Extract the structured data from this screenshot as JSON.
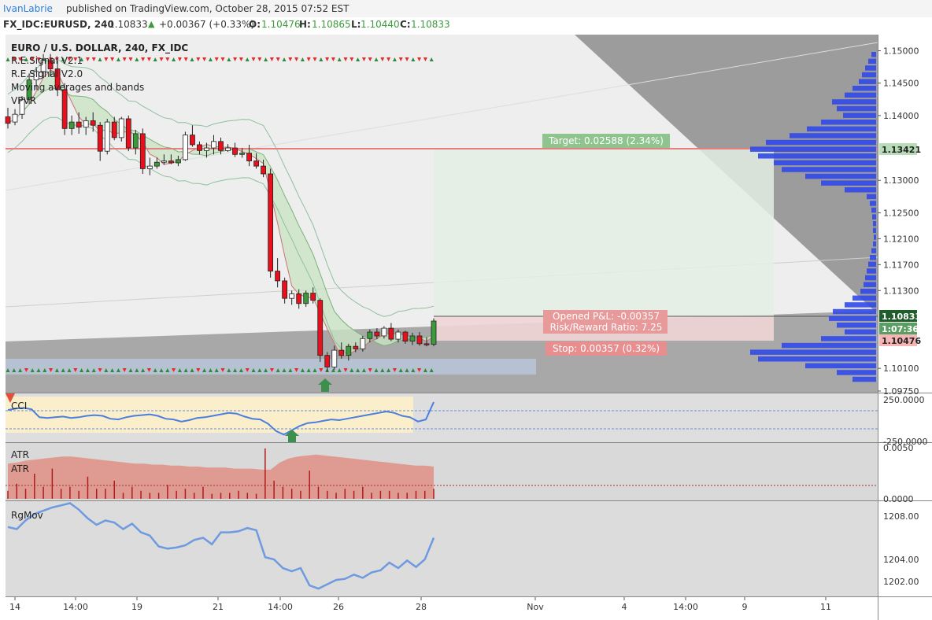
{
  "header": {
    "author": "IvanLabrie",
    "published_text": "published on TradingView.com, October 28, 2015 07:52 EST"
  },
  "ticker": {
    "symbol": "FX_IDC:EURUSD, 240",
    "last": "1.10833",
    "change": "+0.00367 (+0.33%)",
    "o_label": "O:",
    "o": "1.10476",
    "h_label": "H:",
    "h": "1.10865",
    "l_label": "L:",
    "l": "1.10440",
    "c_label": "C:",
    "c": "1.10833"
  },
  "colors": {
    "up_candle": "#3b9b3b",
    "down_candle": "#e8101c",
    "hollow_candle": "#ffffff",
    "buy_marker": "#2e8b3a",
    "sell_marker": "#e82a2a",
    "line_blue": "#4a7fe0",
    "target_zone": "#e3f0e3",
    "stop_zone": "#f3d8d8",
    "volume_profile": "#3049ea",
    "atr_fill": "#e0857a"
  },
  "legend": {
    "title": "EURO / U.S. DOLLAR, 240, FX_IDC",
    "items": [
      "R.E.Signal V2.1",
      "R.E.Signal V2.0",
      "Moving averages and bands",
      "VPVR"
    ]
  },
  "panes": {
    "cci_label": "CCI",
    "atr_label_1": "ATR",
    "atr_label_2": "ATR",
    "rgmov_label": "RgMov"
  },
  "position": {
    "target_label": "Target: 0.02588 (2.34%)",
    "pnl_label": "Opened P&L: -0.00357",
    "rr_label": "Risk/Reward Ratio: 7.25",
    "stop_label": "Stop: 0.00357 (0.32%)"
  },
  "price_axis": {
    "ticks": [
      "1.15000",
      "1.14500",
      "1.14000",
      "1.13000",
      "1.12500",
      "1.12100",
      "1.11700",
      "1.11300",
      "1.10100",
      "1.09750"
    ],
    "badges": [
      {
        "text": "1.13421",
        "bg": "#b7dcb7",
        "fg": "#222222"
      },
      {
        "text": "1.10833",
        "bg": "#1f5d2a",
        "fg": "#ffffff"
      },
      {
        "text": "1:07:36",
        "bg": "#5b9e63",
        "fg": "#ffffff"
      },
      {
        "text": "1.10476",
        "bg": "#f5b5b5",
        "fg": "#222222"
      }
    ]
  },
  "cci_axis": {
    "ticks": [
      "250.0000",
      "-250.0000"
    ]
  },
  "atr_axis": {
    "ticks": [
      "0.0050",
      "0.0000"
    ]
  },
  "rgmov_axis": {
    "ticks": [
      "1208.00",
      "1204.00",
      "1202.00"
    ]
  },
  "time_axis": {
    "ticks": [
      "14",
      "14:00",
      "19",
      "21",
      "14:00",
      "26",
      "28",
      "Nov",
      "4",
      "14:00",
      "9",
      "11"
    ]
  },
  "chart_data": {
    "type": "candlestick",
    "title": "EURO / U.S. DOLLAR, 240, FX_IDC",
    "xlabel": "",
    "ylabel": "",
    "ylim": [
      1.0975,
      1.152
    ],
    "levels": {
      "target": 1.13421,
      "entry": 1.10833,
      "stop": 1.10476
    },
    "ohlc": [
      [
        1.1398,
        1.1412,
        1.138,
        1.1388
      ],
      [
        1.139,
        1.141,
        1.1385,
        1.1402
      ],
      [
        1.1402,
        1.143,
        1.1395,
        1.1425
      ],
      [
        1.1425,
        1.1465,
        1.1418,
        1.1455
      ],
      [
        1.1455,
        1.1475,
        1.144,
        1.1468
      ],
      [
        1.1468,
        1.1495,
        1.1458,
        1.1485
      ],
      [
        1.1485,
        1.1495,
        1.146,
        1.1472
      ],
      [
        1.1472,
        1.1485,
        1.143,
        1.144
      ],
      [
        1.144,
        1.145,
        1.137,
        1.138
      ],
      [
        1.138,
        1.14,
        1.137,
        1.139
      ],
      [
        1.139,
        1.1405,
        1.1372,
        1.1382
      ],
      [
        1.1382,
        1.1398,
        1.137,
        1.1392
      ],
      [
        1.1392,
        1.1405,
        1.1375,
        1.1385
      ],
      [
        1.1385,
        1.139,
        1.133,
        1.1345
      ],
      [
        1.1345,
        1.1395,
        1.134,
        1.139
      ],
      [
        1.139,
        1.1398,
        1.1362,
        1.1366
      ],
      [
        1.1366,
        1.1398,
        1.136,
        1.1395
      ],
      [
        1.1395,
        1.14,
        1.1345,
        1.135
      ],
      [
        1.135,
        1.1378,
        1.134,
        1.1372
      ],
      [
        1.1372,
        1.138,
        1.131,
        1.1318
      ],
      [
        1.1318,
        1.1335,
        1.1308,
        1.1322
      ],
      [
        1.1322,
        1.1335,
        1.1318,
        1.1328
      ],
      [
        1.1328,
        1.134,
        1.1324,
        1.133
      ],
      [
        1.133,
        1.134,
        1.1325,
        1.1327
      ],
      [
        1.1327,
        1.1338,
        1.1322,
        1.1332
      ],
      [
        1.1332,
        1.1375,
        1.133,
        1.137
      ],
      [
        1.137,
        1.1385,
        1.1352,
        1.1355
      ],
      [
        1.1355,
        1.136,
        1.134,
        1.1346
      ],
      [
        1.1346,
        1.1358,
        1.1335,
        1.135
      ],
      [
        1.135,
        1.137,
        1.134,
        1.136
      ],
      [
        1.136,
        1.1366,
        1.134,
        1.1346
      ],
      [
        1.1346,
        1.1356,
        1.1344,
        1.135
      ],
      [
        1.135,
        1.1358,
        1.1336,
        1.134
      ],
      [
        1.134,
        1.135,
        1.1335,
        1.1342
      ],
      [
        1.1342,
        1.1355,
        1.1322,
        1.133
      ],
      [
        1.133,
        1.1342,
        1.1318,
        1.1322
      ],
      [
        1.1322,
        1.1332,
        1.1305,
        1.131
      ],
      [
        1.131,
        1.1318,
        1.115,
        1.116
      ],
      [
        1.116,
        1.118,
        1.1135,
        1.1145
      ],
      [
        1.1145,
        1.115,
        1.111,
        1.1118
      ],
      [
        1.1118,
        1.113,
        1.1108,
        1.1125
      ],
      [
        1.1125,
        1.1132,
        1.1102,
        1.111
      ],
      [
        1.111,
        1.113,
        1.1105,
        1.1126
      ],
      [
        1.1126,
        1.1135,
        1.111,
        1.1115
      ],
      [
        1.1115,
        1.1118,
        1.102,
        1.103
      ],
      [
        1.103,
        1.1035,
        1.1005,
        1.1012
      ],
      [
        1.1012,
        1.1045,
        1.1008,
        1.1038
      ],
      [
        1.1038,
        1.105,
        1.1025,
        1.103
      ],
      [
        1.103,
        1.1048,
        1.1022,
        1.1044
      ],
      [
        1.1044,
        1.105,
        1.1035,
        1.104
      ],
      [
        1.104,
        1.106,
        1.1036,
        1.1056
      ],
      [
        1.1056,
        1.107,
        1.105,
        1.1066
      ],
      [
        1.1066,
        1.1072,
        1.1055,
        1.106
      ],
      [
        1.106,
        1.1075,
        1.1056,
        1.1072
      ],
      [
        1.1072,
        1.108,
        1.1052,
        1.1055
      ],
      [
        1.1055,
        1.107,
        1.105,
        1.1066
      ],
      [
        1.1066,
        1.1068,
        1.1048,
        1.1052
      ],
      [
        1.1052,
        1.1065,
        1.1046,
        1.106
      ],
      [
        1.106,
        1.1066,
        1.1045,
        1.1048
      ],
      [
        1.1048,
        1.1058,
        1.1044,
        1.1047
      ],
      [
        1.1047,
        1.1087,
        1.1044,
        1.1083
      ]
    ],
    "cci": [
      140,
      160,
      170,
      150,
      40,
      30,
      40,
      50,
      30,
      40,
      60,
      70,
      60,
      20,
      10,
      40,
      60,
      70,
      80,
      60,
      20,
      10,
      -20,
      0,
      30,
      40,
      60,
      80,
      100,
      90,
      50,
      20,
      10,
      -50,
      -150,
      -200,
      -140,
      -80,
      -40,
      -30,
      -10,
      10,
      0,
      20,
      40,
      60,
      80,
      100,
      120,
      100,
      60,
      40,
      -20,
      10,
      250
    ],
    "atr_fill": [
      0.0035,
      0.0036,
      0.0038,
      0.0039,
      0.004,
      0.0041,
      0.0042,
      0.0042,
      0.0041,
      0.004,
      0.0039,
      0.0038,
      0.0037,
      0.0036,
      0.0035,
      0.0035,
      0.0034,
      0.0034,
      0.0033,
      0.0033,
      0.0032,
      0.0032,
      0.0031,
      0.0031,
      0.0031,
      0.003,
      0.003,
      0.003,
      0.0029,
      0.0029,
      0.0036,
      0.004,
      0.0042,
      0.0043,
      0.0044,
      0.0043,
      0.0042,
      0.0041,
      0.004,
      0.0039,
      0.0038,
      0.0037,
      0.0036,
      0.0035,
      0.0034,
      0.0033,
      0.0033,
      0.0032
    ],
    "atr_bars": [
      0.0008,
      0.0015,
      0.001,
      0.0025,
      0.0012,
      0.003,
      0.001,
      0.0012,
      0.0008,
      0.0022,
      0.001,
      0.001,
      0.0018,
      0.0006,
      0.0012,
      0.0008,
      0.0006,
      0.0006,
      0.0014,
      0.0008,
      0.001,
      0.0006,
      0.0012,
      0.0005,
      0.0006,
      0.0006,
      0.0008,
      0.0006,
      0.0005,
      0.005,
      0.0018,
      0.0012,
      0.001,
      0.0008,
      0.0028,
      0.0012,
      0.0008,
      0.0006,
      0.001,
      0.0008,
      0.0012,
      0.0006,
      0.0008,
      0.0008,
      0.0006,
      0.0006,
      0.0008,
      0.0008,
      0.001
    ],
    "rgmov": [
      1207.0,
      1206.8,
      1207.6,
      1208.2,
      1208.5,
      1208.8,
      1209.0,
      1209.2,
      1208.6,
      1207.8,
      1207.2,
      1207.6,
      1207.4,
      1206.8,
      1207.3,
      1206.5,
      1206.2,
      1205.2,
      1205.0,
      1205.1,
      1205.3,
      1205.8,
      1206.0,
      1205.4,
      1206.5,
      1206.5,
      1206.6,
      1206.9,
      1206.7,
      1204.2,
      1204.0,
      1203.2,
      1202.9,
      1203.2,
      1201.6,
      1201.3,
      1201.7,
      1202.1,
      1202.2,
      1202.6,
      1202.3,
      1202.8,
      1203.0,
      1203.7,
      1203.2,
      1203.9,
      1203.3,
      1204.0,
      1206.0
    ]
  }
}
